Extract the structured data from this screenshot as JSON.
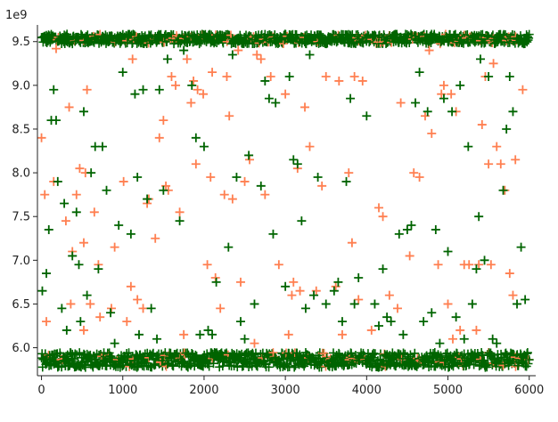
{
  "chart_data": {
    "type": "scatter",
    "marker": "plus",
    "title": "",
    "xlabel": "",
    "ylabel": "",
    "y_offset_label": "1e9",
    "xlim": [
      -50,
      6080
    ],
    "ylim": [
      5.68,
      9.65
    ],
    "x_ticks": [
      0,
      1000,
      2000,
      3000,
      4000,
      5000,
      6000
    ],
    "x_tick_labels": [
      "0",
      "1000",
      "2000",
      "3000",
      "4000",
      "5000",
      "6000"
    ],
    "y_ticks": [
      6.0,
      6.5,
      7.0,
      7.5,
      8.0,
      8.5,
      9.0,
      9.5
    ],
    "y_tick_labels": [
      "6.0",
      "6.5",
      "7.0",
      "7.5",
      "8.0",
      "8.5",
      "9.0",
      "9.5"
    ],
    "grid": false,
    "legend": "none",
    "series": [
      {
        "color": "#ff7f50",
        "points": [
          [
            0,
            8.4
          ],
          [
            40,
            7.75
          ],
          [
            60,
            6.3
          ],
          [
            150,
            7.9
          ],
          [
            180,
            9.42
          ],
          [
            300,
            7.45
          ],
          [
            340,
            8.75
          ],
          [
            360,
            6.5
          ],
          [
            380,
            7.1
          ],
          [
            430,
            7.75
          ],
          [
            470,
            8.05
          ],
          [
            520,
            6.2
          ],
          [
            520,
            7.2
          ],
          [
            540,
            8.0
          ],
          [
            560,
            8.95
          ],
          [
            600,
            6.5
          ],
          [
            650,
            7.55
          ],
          [
            700,
            6.95
          ],
          [
            720,
            6.35
          ],
          [
            860,
            6.45
          ],
          [
            900,
            7.15
          ],
          [
            1010,
            7.9
          ],
          [
            1050,
            6.3
          ],
          [
            1100,
            6.7
          ],
          [
            1120,
            9.3
          ],
          [
            1180,
            6.55
          ],
          [
            1250,
            6.45
          ],
          [
            1300,
            7.65
          ],
          [
            1320,
            7.7
          ],
          [
            1400,
            7.25
          ],
          [
            1450,
            8.4
          ],
          [
            1500,
            8.6
          ],
          [
            1530,
            7.85
          ],
          [
            1560,
            7.8
          ],
          [
            1600,
            9.1
          ],
          [
            1650,
            9.0
          ],
          [
            1700,
            7.55
          ],
          [
            1750,
            6.15
          ],
          [
            1790,
            9.3
          ],
          [
            1840,
            8.8
          ],
          [
            1870,
            9.05
          ],
          [
            1900,
            8.1
          ],
          [
            1920,
            8.95
          ],
          [
            1990,
            8.9
          ],
          [
            2040,
            6.95
          ],
          [
            2080,
            7.95
          ],
          [
            2100,
            9.15
          ],
          [
            2140,
            6.8
          ],
          [
            2200,
            6.45
          ],
          [
            2250,
            7.75
          ],
          [
            2280,
            9.1
          ],
          [
            2310,
            8.65
          ],
          [
            2350,
            7.7
          ],
          [
            2420,
            9.4
          ],
          [
            2450,
            6.75
          ],
          [
            2500,
            7.9
          ],
          [
            2560,
            8.15
          ],
          [
            2620,
            6.05
          ],
          [
            2650,
            9.35
          ],
          [
            2700,
            9.3
          ],
          [
            2750,
            7.75
          ],
          [
            2820,
            9.1
          ],
          [
            2920,
            6.95
          ],
          [
            3000,
            8.9
          ],
          [
            3040,
            6.15
          ],
          [
            3080,
            6.6
          ],
          [
            3100,
            6.75
          ],
          [
            3150,
            8.05
          ],
          [
            3180,
            6.65
          ],
          [
            3240,
            8.75
          ],
          [
            3300,
            8.3
          ],
          [
            3380,
            6.65
          ],
          [
            3450,
            7.85
          ],
          [
            3500,
            9.1
          ],
          [
            3620,
            6.7
          ],
          [
            3660,
            9.05
          ],
          [
            3700,
            6.15
          ],
          [
            3780,
            8.0
          ],
          [
            3820,
            7.2
          ],
          [
            3850,
            9.1
          ],
          [
            3900,
            6.55
          ],
          [
            3950,
            9.05
          ],
          [
            4060,
            6.2
          ],
          [
            4150,
            7.6
          ],
          [
            4200,
            7.5
          ],
          [
            4280,
            6.6
          ],
          [
            4380,
            6.45
          ],
          [
            4420,
            8.8
          ],
          [
            4530,
            7.05
          ],
          [
            4580,
            8.0
          ],
          [
            4650,
            7.95
          ],
          [
            4720,
            8.65
          ],
          [
            4770,
            9.4
          ],
          [
            4800,
            8.45
          ],
          [
            4880,
            6.95
          ],
          [
            4920,
            8.9
          ],
          [
            4950,
            9.0
          ],
          [
            5000,
            6.5
          ],
          [
            5040,
            8.9
          ],
          [
            5060,
            6.1
          ],
          [
            5100,
            8.7
          ],
          [
            5150,
            6.2
          ],
          [
            5200,
            6.95
          ],
          [
            5260,
            6.95
          ],
          [
            5350,
            6.2
          ],
          [
            5380,
            6.95
          ],
          [
            5420,
            8.55
          ],
          [
            5460,
            9.1
          ],
          [
            5500,
            8.1
          ],
          [
            5530,
            6.95
          ],
          [
            5560,
            9.25
          ],
          [
            5600,
            8.3
          ],
          [
            5650,
            8.1
          ],
          [
            5700,
            7.8
          ],
          [
            5760,
            6.85
          ],
          [
            5800,
            6.6
          ],
          [
            5830,
            8.15
          ],
          [
            5920,
            8.95
          ]
        ]
      },
      {
        "color": "#006400",
        "points": [
          [
            10,
            6.65
          ],
          [
            60,
            6.85
          ],
          [
            90,
            7.35
          ],
          [
            120,
            8.6
          ],
          [
            150,
            8.95
          ],
          [
            180,
            8.6
          ],
          [
            200,
            7.9
          ],
          [
            250,
            6.45
          ],
          [
            280,
            7.65
          ],
          [
            310,
            6.2
          ],
          [
            380,
            7.05
          ],
          [
            430,
            7.55
          ],
          [
            460,
            6.95
          ],
          [
            480,
            6.3
          ],
          [
            520,
            8.7
          ],
          [
            560,
            6.6
          ],
          [
            610,
            8.0
          ],
          [
            660,
            8.3
          ],
          [
            700,
            6.9
          ],
          [
            750,
            8.3
          ],
          [
            800,
            7.8
          ],
          [
            850,
            6.4
          ],
          [
            900,
            6.05
          ],
          [
            950,
            7.4
          ],
          [
            1000,
            9.15
          ],
          [
            1100,
            7.3
          ],
          [
            1150,
            8.9
          ],
          [
            1180,
            7.95
          ],
          [
            1200,
            6.15
          ],
          [
            1250,
            8.95
          ],
          [
            1300,
            7.7
          ],
          [
            1350,
            6.45
          ],
          [
            1420,
            6.1
          ],
          [
            1450,
            8.95
          ],
          [
            1500,
            7.8
          ],
          [
            1550,
            9.3
          ],
          [
            1700,
            7.45
          ],
          [
            1750,
            9.4
          ],
          [
            1850,
            9.0
          ],
          [
            1900,
            8.4
          ],
          [
            1950,
            6.15
          ],
          [
            2000,
            8.3
          ],
          [
            2050,
            6.2
          ],
          [
            2100,
            6.15
          ],
          [
            2150,
            6.75
          ],
          [
            2300,
            7.15
          ],
          [
            2350,
            9.35
          ],
          [
            2400,
            7.95
          ],
          [
            2450,
            6.3
          ],
          [
            2500,
            6.1
          ],
          [
            2550,
            8.2
          ],
          [
            2620,
            6.5
          ],
          [
            2700,
            7.85
          ],
          [
            2750,
            9.05
          ],
          [
            2800,
            8.85
          ],
          [
            2850,
            7.3
          ],
          [
            2880,
            8.8
          ],
          [
            3000,
            6.7
          ],
          [
            3050,
            9.1
          ],
          [
            3100,
            8.15
          ],
          [
            3150,
            8.1
          ],
          [
            3200,
            7.45
          ],
          [
            3250,
            6.45
          ],
          [
            3300,
            9.35
          ],
          [
            3350,
            6.6
          ],
          [
            3400,
            7.95
          ],
          [
            3500,
            6.5
          ],
          [
            3600,
            6.65
          ],
          [
            3650,
            6.75
          ],
          [
            3700,
            6.3
          ],
          [
            3750,
            7.9
          ],
          [
            3800,
            8.85
          ],
          [
            3850,
            6.5
          ],
          [
            3900,
            6.8
          ],
          [
            4000,
            8.65
          ],
          [
            4100,
            6.5
          ],
          [
            4150,
            6.25
          ],
          [
            4200,
            6.9
          ],
          [
            4250,
            6.35
          ],
          [
            4300,
            6.3
          ],
          [
            4400,
            7.3
          ],
          [
            4450,
            6.15
          ],
          [
            4500,
            7.35
          ],
          [
            4550,
            7.4
          ],
          [
            4600,
            8.8
          ],
          [
            4650,
            9.15
          ],
          [
            4700,
            6.3
          ],
          [
            4750,
            8.7
          ],
          [
            4800,
            6.4
          ],
          [
            4850,
            7.35
          ],
          [
            4900,
            6.05
          ],
          [
            4950,
            8.85
          ],
          [
            5000,
            7.1
          ],
          [
            5050,
            8.7
          ],
          [
            5100,
            6.35
          ],
          [
            5150,
            9.0
          ],
          [
            5200,
            6.1
          ],
          [
            5250,
            8.3
          ],
          [
            5300,
            6.5
          ],
          [
            5350,
            6.9
          ],
          [
            5380,
            7.5
          ],
          [
            5400,
            9.3
          ],
          [
            5450,
            7.0
          ],
          [
            5500,
            9.1
          ],
          [
            5550,
            6.1
          ],
          [
            5600,
            6.05
          ],
          [
            5680,
            7.8
          ],
          [
            5720,
            8.5
          ],
          [
            5760,
            9.1
          ],
          [
            5800,
            8.7
          ],
          [
            5850,
            6.5
          ],
          [
            5900,
            7.15
          ],
          [
            5950,
            6.55
          ]
        ]
      }
    ],
    "dense_bands": [
      {
        "color": "#006400",
        "accent_color": "#ff7f50",
        "y_center": 9.53,
        "y_spread": 0.055,
        "x_range": [
          0,
          6000
        ]
      },
      {
        "color": "#006400",
        "accent_color": "#ff7f50",
        "y_center": 5.86,
        "y_spread": 0.085,
        "x_range": [
          0,
          6000
        ]
      }
    ]
  }
}
